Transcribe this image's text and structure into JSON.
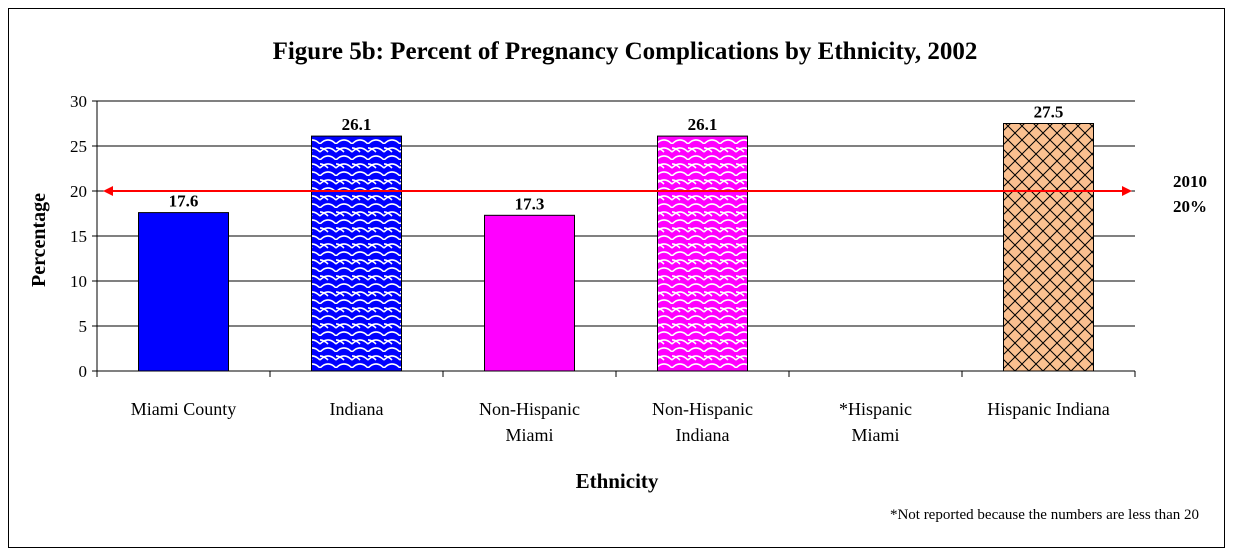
{
  "chart_data": {
    "type": "bar",
    "title": "Figure 5b:  Percent of Pregnancy Complications by Ethnicity, 2002",
    "xlabel": "Ethnicity",
    "ylabel": "Percentage",
    "ylim": [
      0,
      30
    ],
    "yticks": [
      0,
      5,
      10,
      15,
      20,
      25,
      30
    ],
    "grid": true,
    "categories": [
      "Miami County",
      "Indiana",
      "Non-Hispanic Miami",
      "Non-Hispanic Indiana",
      "*Hispanic Miami",
      "Hispanic Indiana"
    ],
    "category_lines": [
      [
        "Miami County"
      ],
      [
        "Indiana"
      ],
      [
        "Non-Hispanic",
        "Miami"
      ],
      [
        "Non-Hispanic",
        "Indiana"
      ],
      [
        "*Hispanic",
        "Miami"
      ],
      [
        "Hispanic Indiana"
      ]
    ],
    "values": [
      17.6,
      26.1,
      17.3,
      26.1,
      null,
      27.5
    ],
    "value_labels": [
      "17.6",
      "26.1",
      "17.3",
      "26.1",
      "",
      "27.5"
    ],
    "bar_styles": [
      {
        "fill": "#0000ff",
        "pattern": "solid"
      },
      {
        "fill": "#0000ff",
        "pattern": "scales"
      },
      {
        "fill": "#ff00ff",
        "pattern": "solid"
      },
      {
        "fill": "#ff00ff",
        "pattern": "scales"
      },
      {
        "fill": "none",
        "pattern": "none"
      },
      {
        "fill": "#fac090",
        "pattern": "lattice"
      }
    ],
    "target": {
      "value": 20,
      "color": "#ff0000",
      "label_lines": [
        "2010",
        "20%"
      ]
    },
    "footnote": "*Not reported because the numbers are less than 20"
  }
}
